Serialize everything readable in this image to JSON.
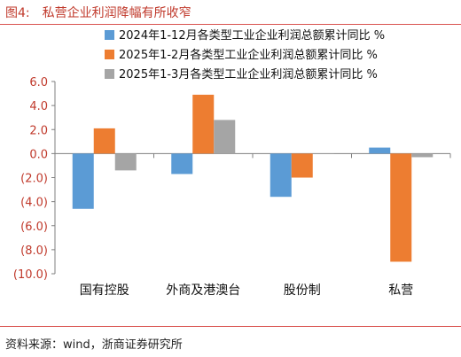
{
  "figure": {
    "number": "图4:",
    "title": "私营企业利润降幅有所收窄",
    "source": "资料来源：wind，浙商证券研究所"
  },
  "colors": {
    "series": [
      "#5B9BD5",
      "#ED7D31",
      "#A5A5A5"
    ],
    "title": "#c0392b",
    "ytick": "#c0392b"
  },
  "chart_data": {
    "type": "bar",
    "categories": [
      "国有控股",
      "外商及港澳台",
      "股份制",
      "私营"
    ],
    "series": [
      {
        "name": "2024年1-12月各类型工业企业利润总额累计同比 %",
        "values": [
          -4.6,
          -1.7,
          -3.6,
          0.5
        ]
      },
      {
        "name": "2025年1-2月各类型工业企业利润总额累计同比 %",
        "values": [
          2.1,
          4.9,
          -2.0,
          -9.0
        ]
      },
      {
        "name": "2025年1-3月各类型工业企业利润总额累计同比 %",
        "values": [
          -1.4,
          2.8,
          0.0,
          -0.3
        ]
      }
    ],
    "ylim": [
      -10,
      6
    ],
    "yticks": [
      6,
      4,
      2,
      0,
      -2,
      -4,
      -6,
      -8,
      -10
    ],
    "ytick_labels": [
      "6.0",
      "4.0",
      "2.0",
      "0.0",
      "(2.0)",
      "(4.0)",
      "(6.0)",
      "(8.0)",
      "(10.0)"
    ],
    "legend_position": "top-center",
    "grid": false
  }
}
